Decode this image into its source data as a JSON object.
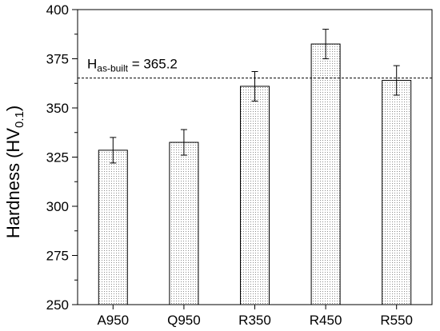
{
  "chart_data": {
    "type": "bar",
    "categories": [
      "A950",
      "Q950",
      "R350",
      "R450",
      "R550"
    ],
    "series": [
      {
        "values": [
          328.5,
          332.5,
          361.0,
          382.5,
          364.0
        ],
        "errors": [
          6.5,
          6.5,
          7.5,
          7.5,
          7.5
        ]
      }
    ],
    "ylabel_main": "Hardness (HV",
    "ylabel_sub": "0.1",
    "ylabel_close": ")",
    "xlabel": "",
    "ylim": [
      250,
      400
    ],
    "yticks": [
      250,
      275,
      300,
      325,
      350,
      375,
      400
    ],
    "bar_pattern": "dotted-fill",
    "reference_line": {
      "value": 365.2,
      "label_main": "H",
      "label_sub": "as-built",
      "label_value": " = 365.2",
      "style": "dashed"
    },
    "grid": false
  }
}
